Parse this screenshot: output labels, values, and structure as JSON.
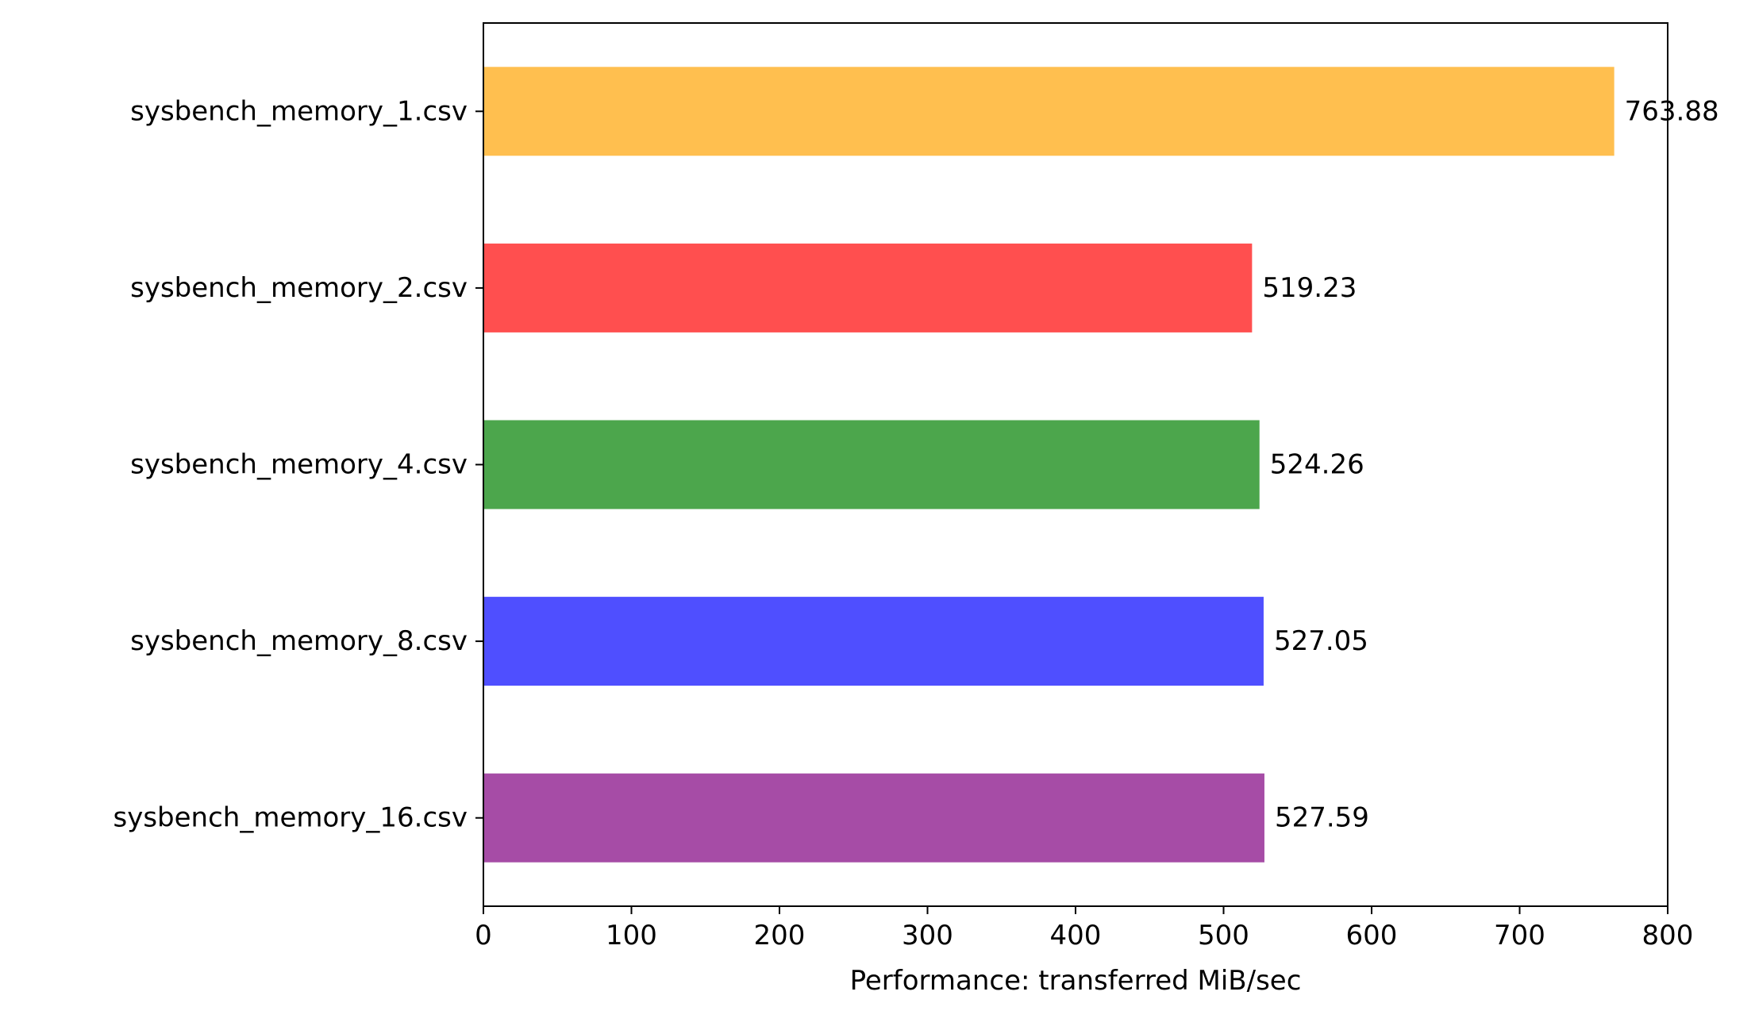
{
  "chart_data": {
    "type": "bar",
    "orientation": "horizontal",
    "categories": [
      "sysbench_memory_1.csv",
      "sysbench_memory_2.csv",
      "sysbench_memory_4.csv",
      "sysbench_memory_8.csv",
      "sysbench_memory_16.csv"
    ],
    "values": [
      763.88,
      519.23,
      524.26,
      527.05,
      527.59
    ],
    "value_labels": [
      "763.88",
      "519.23",
      "524.26",
      "527.05",
      "527.59"
    ],
    "colors": [
      "#FFBF4F",
      "#FF4F4F",
      "#4CA64C",
      "#4F4FFF",
      "#A64CA6"
    ],
    "xlabel": "Performance: transferred MiB/sec",
    "ylabel": "",
    "title": "",
    "xlim": [
      0,
      800
    ],
    "xticks": [
      0,
      100,
      200,
      300,
      400,
      500,
      600,
      700,
      800
    ],
    "xtick_labels": [
      "0",
      "100",
      "200",
      "300",
      "400",
      "500",
      "600",
      "700",
      "800"
    ],
    "grid": false,
    "legend": "none"
  }
}
